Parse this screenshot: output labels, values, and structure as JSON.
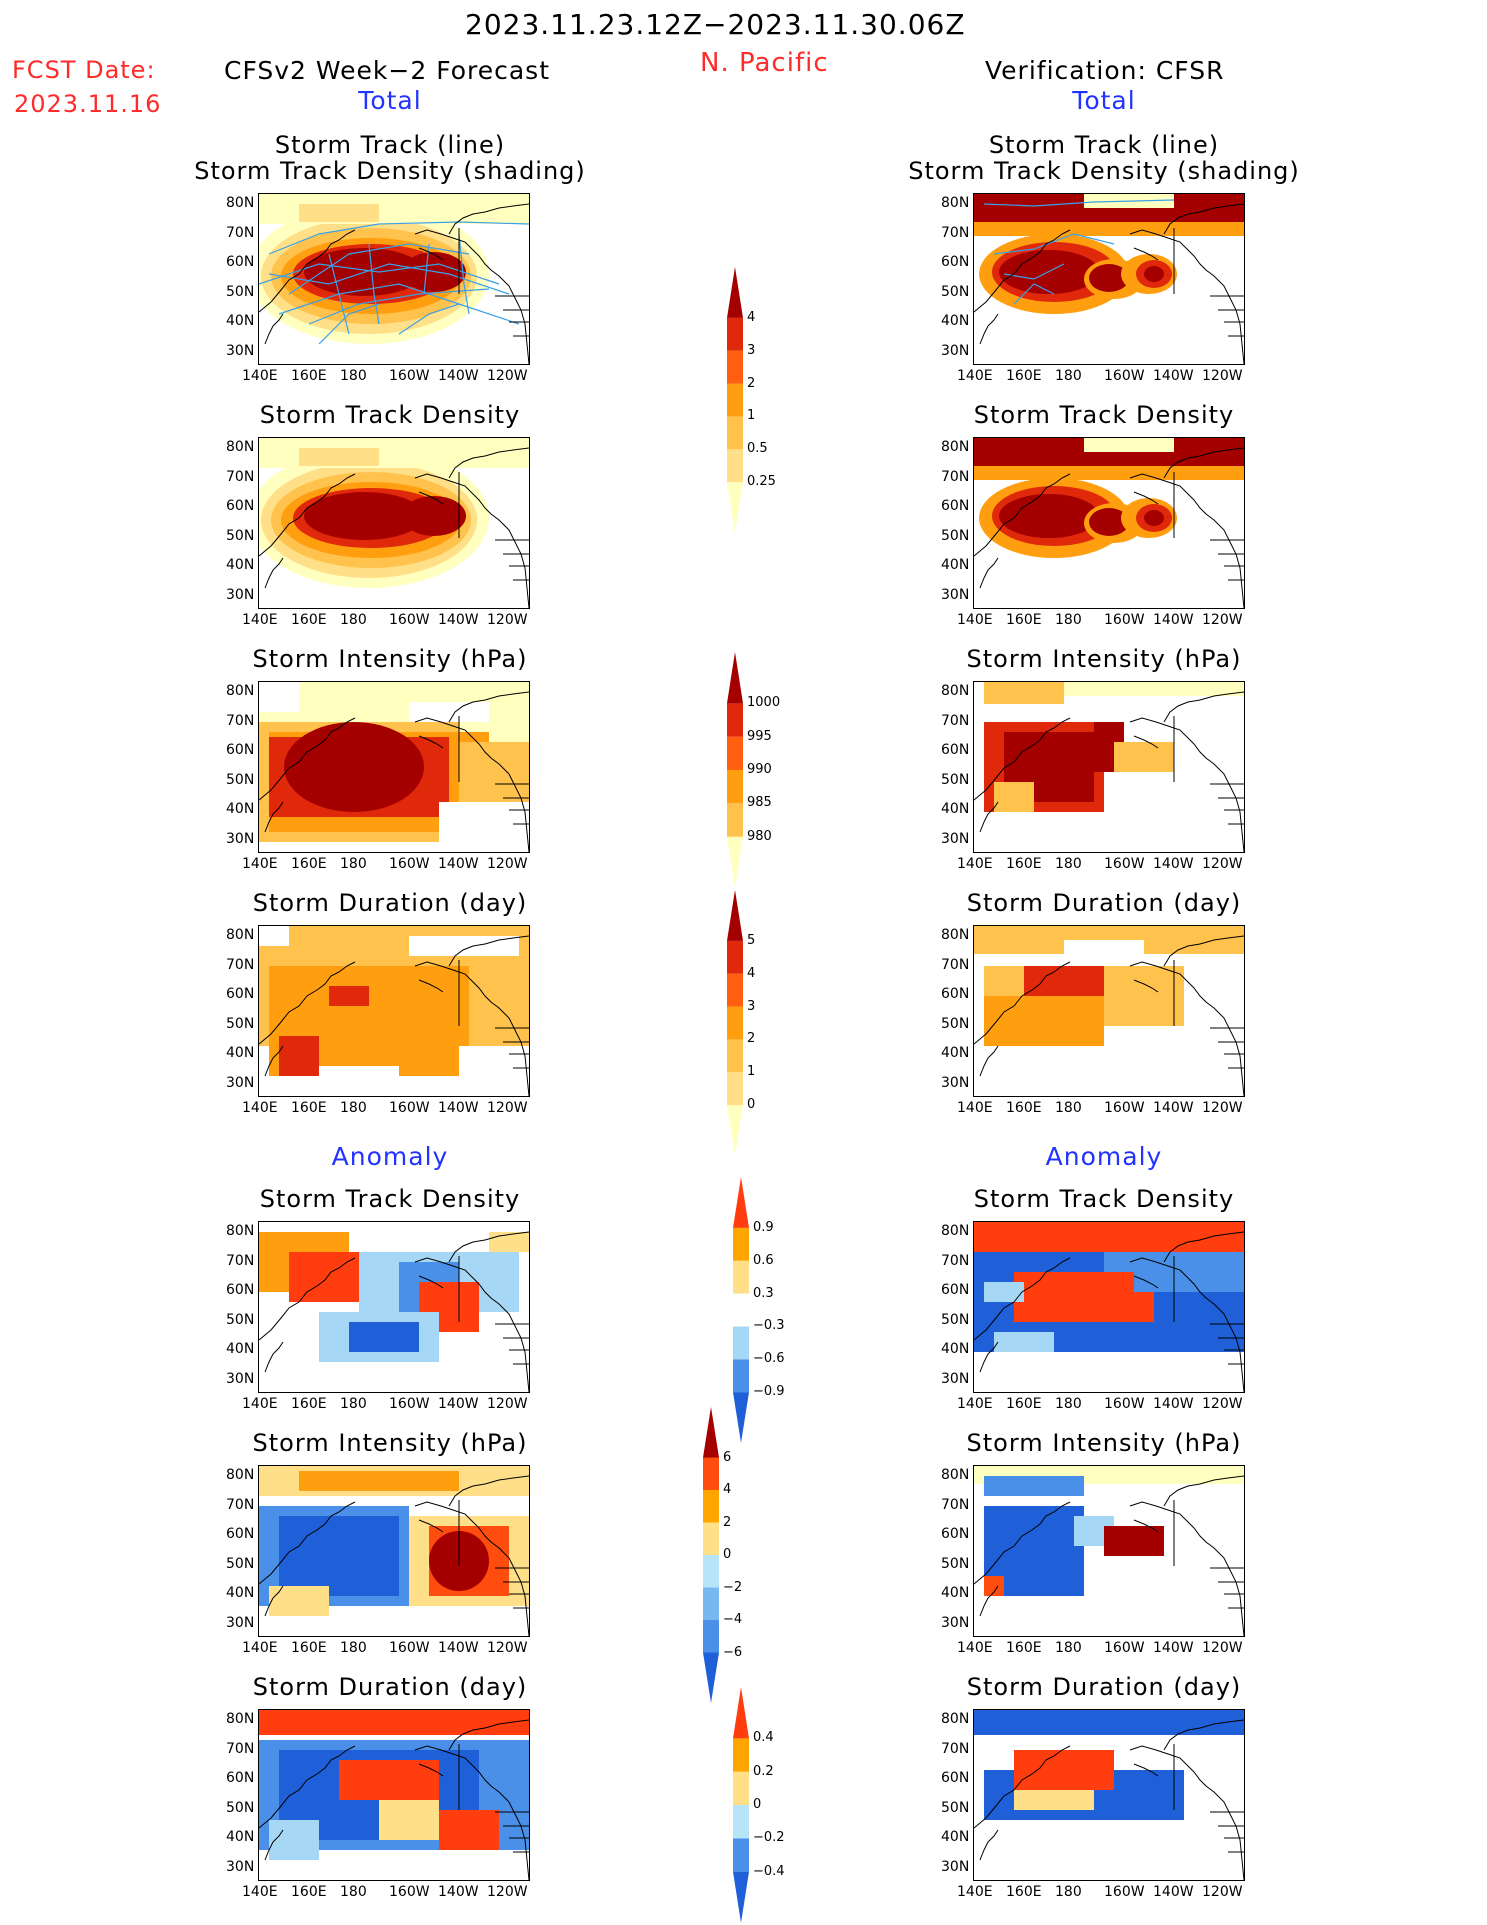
{
  "header": {
    "period": "2023.11.23.12Z−2023.11.30.06Z",
    "region": "N. Pacific",
    "fcst_label": "FCST Date:",
    "fcst_date": "2023.11.16",
    "left_title": "CFSv2 Week−2 Forecast",
    "right_title": "Verification: CFSR",
    "total_label": "Total",
    "anomaly_label": "Anomaly"
  },
  "panel_titles": {
    "st_line_1": "Storm Track (line)",
    "st_line_2": "Storm Track Density (shading)",
    "density": "Storm Track Density",
    "intensity": "Storm Intensity (hPa)",
    "duration": "Storm Duration (day)"
  },
  "axes": {
    "lat_labels": [
      "80N",
      "70N",
      "60N",
      "50N",
      "40N",
      "30N"
    ],
    "lon_labels": [
      "140E",
      "160E",
      "180",
      "160W",
      "140W",
      "120W"
    ]
  },
  "colorbars": {
    "density": {
      "labels": [
        "4",
        "3",
        "2",
        "1",
        "0.5",
        "0.25"
      ],
      "colors": [
        "#ffffc0",
        "#ffe089",
        "#ffc24c",
        "#ff9f0f",
        "#ff5f0f",
        "#e0280a",
        "#a50000"
      ]
    },
    "intensity": {
      "labels": [
        "1000",
        "995",
        "990",
        "985",
        "980"
      ],
      "colors": [
        "#ffffc0",
        "#ffc24c",
        "#ff9f0f",
        "#ff5f0f",
        "#e0280a",
        "#a50000"
      ]
    },
    "duration": {
      "labels": [
        "5",
        "4",
        "3",
        "2",
        "1",
        "0"
      ],
      "colors": [
        "#ffffc0",
        "#ffe089",
        "#ffc24c",
        "#ff9f0f",
        "#ff5f0f",
        "#e0280a",
        "#a50000"
      ]
    },
    "anom_density": {
      "labels": [
        "0.9",
        "0.6",
        "0.3",
        "−0.3",
        "−0.6",
        "−0.9"
      ],
      "colors": [
        "#1f5fd8",
        "#4a90e8",
        "#a6d8f5",
        "#ffffff",
        "#ffe089",
        "#ffa500",
        "#ff3d0f"
      ]
    },
    "anom_intensity": {
      "labels": [
        "6",
        "4",
        "2",
        "0",
        "−2",
        "−4",
        "−6"
      ],
      "colors": [
        "#1f5fd8",
        "#4a90e8",
        "#78b8ee",
        "#b8e4f8",
        "#ffe089",
        "#ffa500",
        "#ff4d0f",
        "#a50000"
      ]
    },
    "anom_duration": {
      "labels": [
        "0.4",
        "0.2",
        "0",
        "−0.2",
        "−0.4"
      ],
      "colors": [
        "#1f5fd8",
        "#4a90e8",
        "#b8e4f8",
        "#ffe089",
        "#ffa500",
        "#ff3d0f"
      ]
    }
  },
  "colors": {
    "track_line": "#3aa0e8",
    "dark_red": "#a50000",
    "red": "#e0280a",
    "orange": "#ff9f0f",
    "light_orange": "#ffc24c",
    "yellow": "#ffe089",
    "pale": "#ffffc0",
    "blue": "#1f5fd8",
    "light_blue": "#a6d8f5"
  }
}
